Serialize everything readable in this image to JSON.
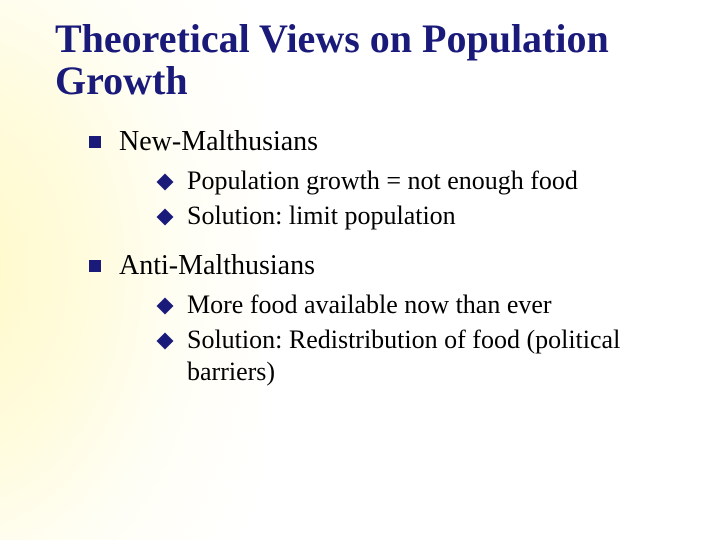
{
  "colors": {
    "title_color": "#1a1a7a",
    "bullet_color": "#1a1a7a",
    "body_text_color": "#000000",
    "background": "#ffffff",
    "gradient_inner": "#fff9c4"
  },
  "typography": {
    "font_family": "Times New Roman",
    "title_fontsize": 40,
    "title_weight": "bold",
    "level1_fontsize": 28,
    "level2_fontsize": 26
  },
  "title": "Theoretical Views on Population Growth",
  "sections": [
    {
      "heading": "New-Malthusians",
      "points": [
        "Population growth = not enough food",
        "Solution: limit population"
      ]
    },
    {
      "heading": "Anti-Malthusians",
      "points": [
        "More food available now than ever",
        "Solution: Redistribution of food (political barriers)"
      ]
    }
  ]
}
